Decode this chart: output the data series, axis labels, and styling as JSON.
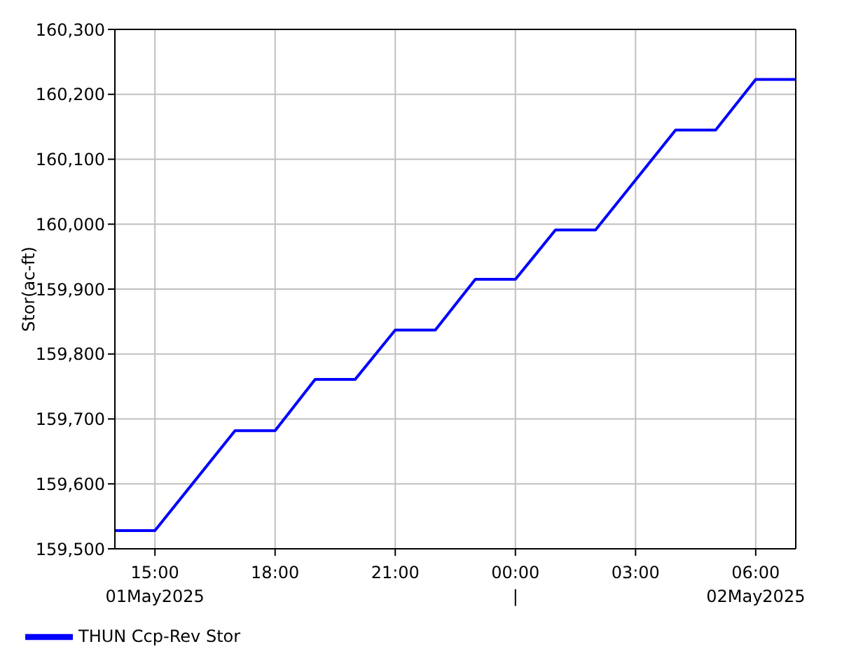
{
  "chart_data": {
    "type": "line",
    "ylabel": "Stor(ac-ft)",
    "x": [
      "2025-05-01T14:00",
      "2025-05-01T15:00",
      "2025-05-01T17:00",
      "2025-05-01T18:00",
      "2025-05-01T19:00",
      "2025-05-01T20:00",
      "2025-05-01T21:00",
      "2025-05-01T22:00",
      "2025-05-01T23:00",
      "2025-05-02T00:00",
      "2025-05-02T01:00",
      "2025-05-02T02:00",
      "2025-05-02T04:00",
      "2025-05-02T05:00",
      "2025-05-02T06:00",
      "2025-05-02T07:00"
    ],
    "series": [
      {
        "name": "THUN Ccp-Rev Stor",
        "color": "#0000ff",
        "values": [
          159528,
          159528,
          159682,
          159682,
          159761,
          159761,
          159837,
          159837,
          159915,
          159915,
          159991,
          159991,
          160145,
          160145,
          160223,
          160223
        ]
      }
    ],
    "xlim": [
      "2025-05-01T14:00",
      "2025-05-02T07:00"
    ],
    "xticks": [
      {
        "value": "2025-05-01T15:00",
        "label": "15:00\n01May2025"
      },
      {
        "value": "2025-05-01T18:00",
        "label": "18:00"
      },
      {
        "value": "2025-05-01T21:00",
        "label": "21:00"
      },
      {
        "value": "2025-05-02T00:00",
        "label": "00:00\n|"
      },
      {
        "value": "2025-05-02T03:00",
        "label": "03:00"
      },
      {
        "value": "2025-05-02T06:00",
        "label": "06:00\n02May2025"
      }
    ],
    "ylim": [
      159500,
      160300
    ],
    "yticks": [
      {
        "value": 159500,
        "label": "159,500"
      },
      {
        "value": 159600,
        "label": "159,600"
      },
      {
        "value": 159700,
        "label": "159,700"
      },
      {
        "value": 159800,
        "label": "159,800"
      },
      {
        "value": 159900,
        "label": "159,900"
      },
      {
        "value": 160000,
        "label": "160,000"
      },
      {
        "value": 160100,
        "label": "160,100"
      },
      {
        "value": 160200,
        "label": "160,200"
      },
      {
        "value": 160300,
        "label": "160,300"
      }
    ],
    "grid": true,
    "legend": "bottom left",
    "marker": "none",
    "line_style": "solid"
  }
}
